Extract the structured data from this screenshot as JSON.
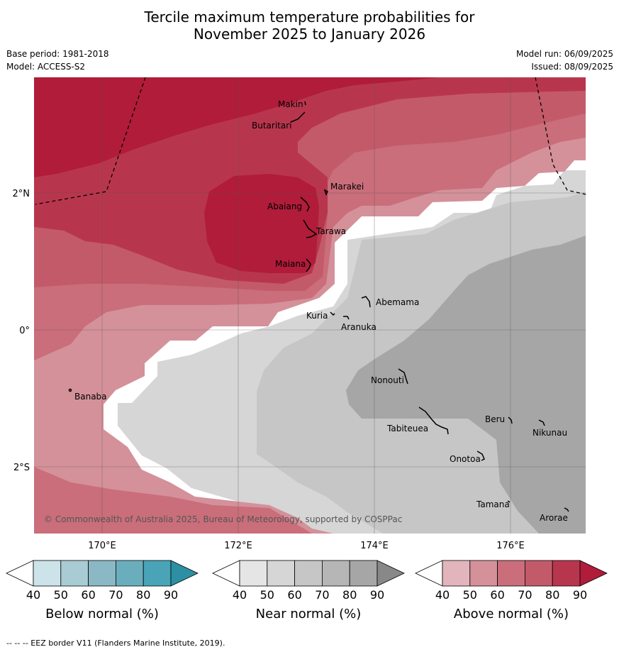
{
  "title_line1": "Tercile maximum temperature probabilities for",
  "title_line2": "November 2025 to January 2026",
  "meta": {
    "base_period": "Base period: 1981-2018",
    "model": "Model: ACCESS-S2",
    "model_run": "Model run: 06/09/2025",
    "issued": "Issued: 08/09/2025"
  },
  "map": {
    "lon_range": [
      169,
      177.3
    ],
    "lat_range": [
      -3,
      3.7
    ],
    "x_ticks": [
      "170°E",
      "172°E",
      "174°E",
      "176°E"
    ],
    "y_ticks": [
      "2°N",
      "0°",
      "2°S"
    ],
    "places": [
      "Makin",
      "Butaritari",
      "Marakei",
      "Abaiang",
      "Tarawa",
      "Maiana",
      "Abemama",
      "Kuria",
      "Aranuka",
      "Banaba",
      "Nonouti",
      "Beru",
      "Tabiteuea",
      "Nikunau",
      "Onotoa",
      "Tamana",
      "Arorae"
    ],
    "copyright": "© Commonwealth of Australia 2025, Bureau of Meteorology, supported by COSPPac"
  },
  "colorbars": [
    {
      "title": "Below normal (%)",
      "ticks": [
        "40",
        "50",
        "60",
        "70",
        "80",
        "90"
      ],
      "colors": [
        "#ffffff",
        "#cce3ea",
        "#a9cbd4",
        "#8ab8c5",
        "#6aaebd",
        "#48a4b6",
        "#2c8fa3"
      ]
    },
    {
      "title": "Near normal (%)",
      "ticks": [
        "40",
        "50",
        "60",
        "70",
        "80",
        "90"
      ],
      "colors": [
        "#ffffff",
        "#e5e5e5",
        "#d6d6d6",
        "#c6c6c6",
        "#b6b6b6",
        "#a6a6a6",
        "#888888"
      ]
    },
    {
      "title": "Above normal (%)",
      "ticks": [
        "40",
        "50",
        "60",
        "70",
        "80",
        "90"
      ],
      "colors": [
        "#ffffff",
        "#e2b5bd",
        "#d4919a",
        "#c96e7a",
        "#c35a6a",
        "#b8364d",
        "#b01c3a"
      ]
    }
  ],
  "footer": "--  --  -- EEZ border V11 (Flanders Marine Institute, 2019)."
}
